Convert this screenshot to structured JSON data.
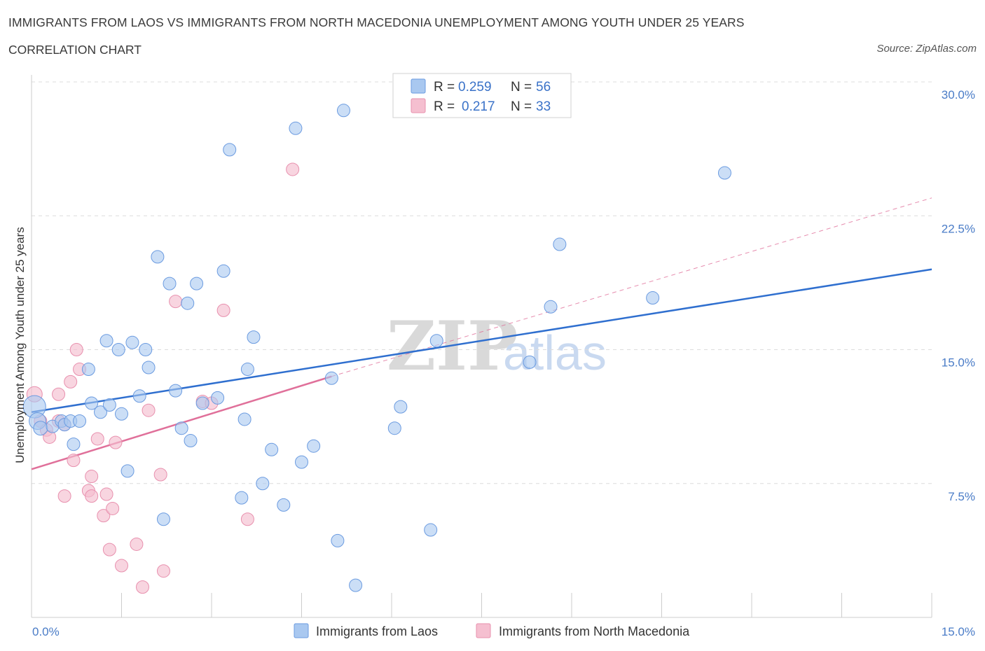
{
  "header": {
    "title": "IMMIGRANTS FROM LAOS VS IMMIGRANTS FROM NORTH MACEDONIA UNEMPLOYMENT AMONG YOUTH UNDER 25 YEARS",
    "subtitle": "CORRELATION CHART",
    "source": "Source: ZipAtlas.com"
  },
  "watermark": {
    "zip": "ZIP",
    "atlas": "atlas"
  },
  "colors": {
    "laos_fill": "#a9c8f0",
    "laos_stroke": "#6b9be0",
    "laos_line": "#2f6fcf",
    "nm_fill": "#f5bfd0",
    "nm_stroke": "#e890ae",
    "nm_line": "#e0709a",
    "grid": "#dcdcdc",
    "axis_label": "#4a7cc7"
  },
  "legend": {
    "r_label": "R =",
    "n_label": "N =",
    "entries": [
      {
        "r": "0.259",
        "n": "56"
      },
      {
        "r": "0.217",
        "n": "33"
      }
    ]
  },
  "chart_data": {
    "type": "scatter",
    "title": "IMMIGRANTS FROM LAOS VS IMMIGRANTS FROM NORTH MACEDONIA UNEMPLOYMENT AMONG YOUTH UNDER 25 YEARS",
    "xlabel": "",
    "ylabel": "Unemployment Among Youth under 25 years",
    "xlim": [
      0,
      15
    ],
    "ylim": [
      0,
      30
    ],
    "x_tick_labels": [
      {
        "value": 0,
        "label": "0.0%"
      },
      {
        "value": 15,
        "label": "15.0%"
      }
    ],
    "y_tick_labels": [
      {
        "value": 7.5,
        "label": "7.5%"
      },
      {
        "value": 15,
        "label": "15.0%"
      },
      {
        "value": 22.5,
        "label": "22.5%"
      },
      {
        "value": 30,
        "label": "30.0%"
      }
    ],
    "x_minor_ticks": [
      0,
      1.5,
      3,
      4.5,
      6,
      7.5,
      9,
      10.5,
      12,
      13.5,
      15
    ],
    "series": [
      {
        "name": "Immigrants from Laos",
        "r": 0.259,
        "n": 56,
        "trend": {
          "x0": 0,
          "y0": 11.5,
          "x1": 15,
          "y1": 19.5,
          "style": "solid"
        },
        "points": [
          [
            0.05,
            11.8,
            16
          ],
          [
            0.1,
            11.0,
            12
          ],
          [
            0.15,
            10.6,
            10
          ],
          [
            0.35,
            10.7,
            9
          ],
          [
            0.5,
            11.0,
            9
          ],
          [
            0.55,
            10.8,
            9
          ],
          [
            0.65,
            11.0,
            9
          ],
          [
            0.7,
            9.7,
            9
          ],
          [
            0.8,
            11.0,
            9
          ],
          [
            0.95,
            13.9,
            9
          ],
          [
            1.0,
            12.0,
            9
          ],
          [
            1.15,
            11.5,
            9
          ],
          [
            1.25,
            15.5,
            9
          ],
          [
            1.3,
            11.9,
            9
          ],
          [
            1.45,
            15.0,
            9
          ],
          [
            1.5,
            11.4,
            9
          ],
          [
            1.6,
            8.2,
            9
          ],
          [
            1.68,
            15.4,
            9
          ],
          [
            1.8,
            12.4,
            9
          ],
          [
            1.9,
            15.0,
            9
          ],
          [
            1.95,
            14.0,
            9
          ],
          [
            2.1,
            20.2,
            9
          ],
          [
            2.2,
            5.5,
            9
          ],
          [
            2.3,
            18.7,
            9
          ],
          [
            2.4,
            12.7,
            9
          ],
          [
            2.5,
            10.6,
            9
          ],
          [
            2.6,
            17.6,
            9
          ],
          [
            2.65,
            9.9,
            9
          ],
          [
            2.75,
            18.7,
            9
          ],
          [
            2.85,
            12.0,
            9
          ],
          [
            3.1,
            12.3,
            9
          ],
          [
            3.2,
            19.4,
            9
          ],
          [
            3.3,
            26.2,
            9
          ],
          [
            3.5,
            6.7,
            9
          ],
          [
            3.55,
            11.1,
            9
          ],
          [
            3.6,
            13.9,
            9
          ],
          [
            3.7,
            15.7,
            9
          ],
          [
            3.85,
            7.5,
            9
          ],
          [
            4.0,
            9.4,
            9
          ],
          [
            4.2,
            6.3,
            9
          ],
          [
            4.4,
            27.4,
            9
          ],
          [
            4.5,
            8.7,
            9
          ],
          [
            4.7,
            9.6,
            9
          ],
          [
            5.0,
            13.4,
            9
          ],
          [
            5.1,
            4.3,
            9
          ],
          [
            5.2,
            28.4,
            9
          ],
          [
            5.4,
            1.8,
            9
          ],
          [
            6.05,
            10.6,
            9
          ],
          [
            6.15,
            11.8,
            9
          ],
          [
            6.65,
            4.9,
            9
          ],
          [
            6.75,
            15.5,
            9
          ],
          [
            8.3,
            14.3,
            9
          ],
          [
            8.65,
            17.4,
            9
          ],
          [
            8.8,
            20.9,
            9
          ],
          [
            10.35,
            17.9,
            9
          ],
          [
            11.55,
            24.9,
            9
          ]
        ]
      },
      {
        "name": "Immigrants from North Macedonia",
        "r": 0.217,
        "n": 33,
        "trend": {
          "x0": 0,
          "y0": 8.3,
          "x1": 5.0,
          "y1": 13.5,
          "style": "solid",
          "extend_to": {
            "x": 15,
            "y": 23.5,
            "style": "dashed"
          }
        },
        "points": [
          [
            0.05,
            12.5,
            11
          ],
          [
            0.15,
            11.0,
            9
          ],
          [
            0.25,
            10.5,
            9
          ],
          [
            0.3,
            10.1,
            9
          ],
          [
            0.45,
            11.0,
            9
          ],
          [
            0.45,
            12.5,
            9
          ],
          [
            0.55,
            10.8,
            9
          ],
          [
            0.55,
            6.8,
            9
          ],
          [
            0.65,
            13.2,
            9
          ],
          [
            0.7,
            8.8,
            9
          ],
          [
            0.75,
            15.0,
            9
          ],
          [
            0.8,
            13.9,
            9
          ],
          [
            0.95,
            7.1,
            9
          ],
          [
            1.0,
            6.8,
            9
          ],
          [
            1.0,
            7.9,
            9
          ],
          [
            1.1,
            10.0,
            9
          ],
          [
            1.2,
            5.7,
            9
          ],
          [
            1.25,
            6.9,
            9
          ],
          [
            1.3,
            3.8,
            9
          ],
          [
            1.35,
            6.1,
            9
          ],
          [
            1.4,
            9.8,
            9
          ],
          [
            1.5,
            2.9,
            9
          ],
          [
            1.75,
            4.1,
            9
          ],
          [
            1.85,
            1.7,
            9
          ],
          [
            1.95,
            11.6,
            9
          ],
          [
            2.15,
            8.0,
            9
          ],
          [
            2.2,
            2.6,
            9
          ],
          [
            2.4,
            17.7,
            9
          ],
          [
            2.85,
            12.1,
            9
          ],
          [
            3.2,
            17.2,
            9
          ],
          [
            3.6,
            5.5,
            9
          ],
          [
            4.35,
            25.1,
            9
          ],
          [
            3.0,
            12.0,
            9
          ]
        ]
      }
    ]
  },
  "bottom_legend": {
    "items": [
      {
        "label": "Immigrants from Laos"
      },
      {
        "label": "Immigrants from North Macedonia"
      }
    ]
  }
}
